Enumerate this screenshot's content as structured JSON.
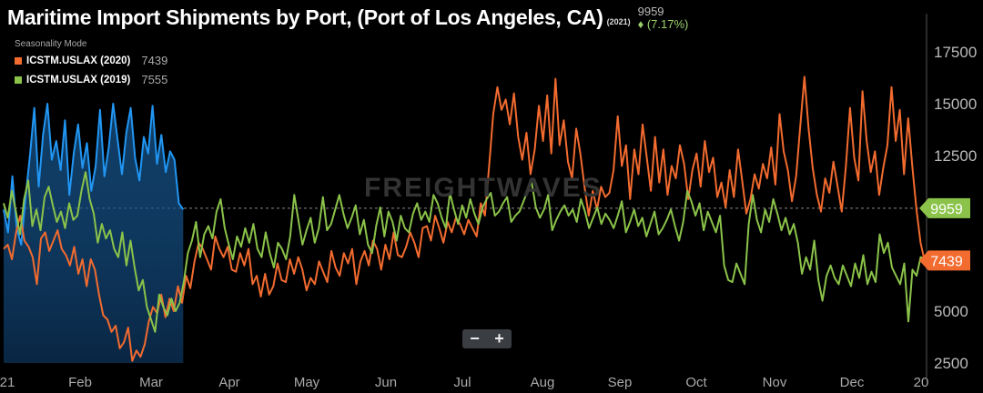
{
  "header": {
    "title": "Maritime Import Shipments by Port, (Port of Los Angeles, CA)",
    "year_tag": "(2021)",
    "current_value": "9959",
    "change_text": "♦ (7.17%)",
    "change_color": "#8bc34a"
  },
  "legend": {
    "mode_label": "Seasonality Mode",
    "items": [
      {
        "label": "ICSTM.USLAX (2020)",
        "value": "7439",
        "color": "#f26b2f"
      },
      {
        "label": "ICSTM.USLAX (2019)",
        "value": "7555",
        "color": "#8bc34a"
      }
    ]
  },
  "watermark": "FREIGHTWAVES",
  "zoom": {
    "minus": "−",
    "plus": "+"
  },
  "chart_data": {
    "type": "line",
    "title": "Maritime Import Shipments by Port, (Port of Los Angeles, CA)",
    "xlabel": "",
    "ylabel": "",
    "ylim": [
      2500,
      18000
    ],
    "y_ticks": [
      2500,
      5000,
      7500,
      10000,
      12500,
      15000,
      17500
    ],
    "y_tick_labels": [
      "2500",
      "5000",
      "",
      "",
      "12500",
      "15000",
      "17500"
    ],
    "x_ticks": [
      "21",
      "Feb",
      "Mar",
      "Apr",
      "May",
      "Jun",
      "Jul",
      "Aug",
      "Sep",
      "Oct",
      "Nov",
      "Dec",
      "20"
    ],
    "grid": false,
    "reference_line": 9959,
    "last_labels": [
      {
        "value": 9959,
        "text": "9959",
        "color": "#8bc34a"
      },
      {
        "value": 7439,
        "text": "7439",
        "color": "#f26b2f"
      }
    ],
    "series": [
      {
        "name": "ICSTM.USLAX (2021)",
        "color": "#2196f3",
        "fill": true,
        "x_start": 0,
        "x_end": 0.195,
        "values": [
          9900,
          8800,
          11500,
          9000,
          8200,
          10500,
          12500,
          14800,
          11000,
          13500,
          15000,
          12300,
          13200,
          11800,
          14200,
          10600,
          12600,
          14000,
          11900,
          13100,
          10800,
          12000,
          14700,
          11500,
          12900,
          15000,
          13300,
          11600,
          13600,
          14800,
          12400,
          11300,
          13400,
          12600,
          14900,
          12100,
          13500,
          11700,
          12700,
          12300,
          10200,
          9900
        ]
      },
      {
        "name": "ICSTM.USLAX (2020)",
        "color": "#f26b2f",
        "fill": false,
        "x_start": 0,
        "x_end": 1,
        "values": [
          8000,
          8200,
          7500,
          8800,
          9600,
          8400,
          8100,
          7600,
          6300,
          8500,
          8800,
          7900,
          8400,
          8900,
          8000,
          7700,
          7200,
          8100,
          6800,
          7500,
          6200,
          7500,
          7000,
          5800,
          4800,
          4600,
          4000,
          4300,
          3200,
          3500,
          4200,
          2600,
          3100,
          2800,
          3400,
          4500,
          5200,
          4900,
          5800,
          4700,
          5600,
          5000,
          6200,
          5400,
          6700,
          6100,
          7400,
          8300,
          8000,
          7500,
          7000,
          8600,
          8000,
          7600,
          8100,
          7000,
          6900,
          7800,
          7200,
          8000,
          6300,
          6700,
          5700,
          6800,
          5800,
          6200,
          7300,
          6500,
          6400,
          7500,
          6800,
          7600,
          7000,
          6000,
          6600,
          6300,
          7400,
          6900,
          6400,
          7900,
          7100,
          6700,
          7800,
          7300,
          8000,
          6300,
          7400,
          7900,
          7200,
          8400,
          8000,
          7000,
          8200,
          7500,
          8800,
          7700,
          7600,
          8100,
          8800,
          8300,
          7600,
          9000,
          9100,
          8400,
          9600,
          9000,
          8300,
          9300,
          8800,
          9500,
          9200,
          8700,
          9400,
          9000,
          8600,
          10200,
          9600,
          12000,
          14500,
          15800,
          14700,
          15200,
          14000,
          15500,
          13400,
          12300,
          13600,
          11600,
          12800,
          14900,
          13200,
          15400,
          12600,
          16200,
          13000,
          14200,
          12200,
          11400,
          13800,
          12600,
          11000,
          9600,
          10800,
          9900,
          11000,
          10500,
          10700,
          11800,
          14400,
          12000,
          13000,
          10400,
          12800,
          11600,
          14000,
          12400,
          10800,
          13400,
          11200,
          12800,
          10600,
          12000,
          11400,
          13000,
          12100,
          10400,
          11800,
          12600,
          11000,
          13200,
          11700,
          12400,
          10500,
          11200,
          10000,
          11800,
          10500,
          12800,
          11300,
          9700,
          10400,
          11600,
          10900,
          12100,
          11400,
          12900,
          11100,
          14500,
          12700,
          11800,
          10300,
          11500,
          13900,
          16300,
          13800,
          11900,
          10600,
          9800,
          11400,
          10700,
          12200,
          11000,
          9800,
          12000,
          14800,
          12400,
          11300,
          15600,
          13200,
          11700,
          12700,
          10600,
          11900,
          13000,
          15800,
          13200,
          14700,
          11600,
          14300,
          12000,
          9900,
          8300,
          7400
        ],
        "last_value": 7439
      },
      {
        "name": "ICSTM.USLAX (2019)",
        "color": "#8bc34a",
        "fill": false,
        "x_start": 0,
        "x_end": 1,
        "values": [
          10200,
          9500,
          10800,
          9800,
          8700,
          10400,
          11300,
          9100,
          9900,
          8900,
          10500,
          11000,
          10100,
          9300,
          9800,
          9000,
          10200,
          9400,
          9600,
          10800,
          11700,
          10400,
          9700,
          8300,
          9200,
          8500,
          8900,
          8000,
          7600,
          8800,
          7200,
          8400,
          7100,
          6000,
          6500,
          5200,
          4600,
          4000,
          5800,
          5200,
          4800,
          5600,
          5000,
          5400,
          6400,
          7800,
          8400,
          9300,
          7600,
          8700,
          9100,
          8500,
          9800,
          10400,
          9000,
          8200,
          7500,
          8600,
          8100,
          9000,
          8300,
          9200,
          8000,
          7600,
          8800,
          7800,
          7100,
          8300,
          8000,
          7500,
          8600,
          10600,
          9400,
          8200,
          8900,
          9500,
          8300,
          9000,
          10500,
          8900,
          9200,
          9900,
          10600,
          9700,
          9000,
          9500,
          10100,
          8700,
          9400,
          8200,
          7800,
          9100,
          10000,
          8600,
          9800,
          9300,
          8400,
          9600,
          9000,
          8800,
          9700,
          10200,
          9400,
          9800,
          9300,
          10600,
          10200,
          9500,
          9000,
          10700,
          9900,
          9200,
          10100,
          9500,
          10400,
          9700,
          9200,
          10000,
          10400,
          10700,
          9600,
          9800,
          10200,
          10500,
          9300,
          9600,
          9800,
          10300,
          10800,
          11200,
          10000,
          9500,
          9900,
          10600,
          8900,
          9400,
          9800,
          10100,
          9600,
          9900,
          9300,
          10400,
          9800,
          9000,
          9500,
          10000,
          9200,
          9700,
          9400,
          9000,
          9600,
          10300,
          8800,
          9300,
          9900,
          9100,
          9500,
          8600,
          9200,
          9800,
          8700,
          9000,
          9400,
          9900,
          9100,
          8400,
          9300,
          10800,
          10300,
          9600,
          10200,
          8900,
          9800,
          9300,
          8800,
          9600,
          7200,
          6500,
          6400,
          7300,
          6800,
          6300,
          9200,
          10600,
          9400,
          8800,
          9900,
          9300,
          10400,
          9700,
          8900,
          9500,
          8700,
          9200,
          8300,
          6800,
          7600,
          7000,
          8400,
          6500,
          5500,
          6700,
          7200,
          6600,
          6300,
          7200,
          6700,
          6200,
          7300,
          6600,
          7700,
          6300,
          6900,
          6400,
          8700,
          7800,
          8300,
          7100,
          6700,
          6300,
          7300,
          4500,
          7000,
          6700,
          7600,
          7555
        ],
        "last_value": 7555
      }
    ]
  }
}
